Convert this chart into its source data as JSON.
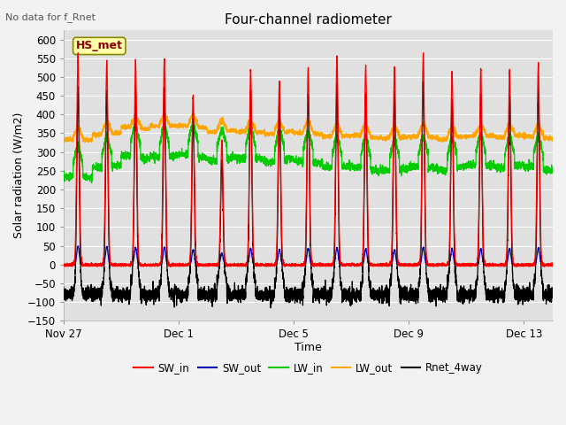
{
  "title": "Four-channel radiometer",
  "top_left_text": "No data for f_Rnet",
  "xlabel": "Time",
  "ylabel": "Solar radiation (W/m2)",
  "ylim": [
    -150,
    625
  ],
  "yticks": [
    -150,
    -100,
    -50,
    0,
    50,
    100,
    150,
    200,
    250,
    300,
    350,
    400,
    450,
    500,
    550,
    600
  ],
  "fig_bg_color": "#f2f2f2",
  "plot_bg_color": "#e0e0e0",
  "legend_entries": [
    "SW_in",
    "SW_out",
    "LW_in",
    "LW_out",
    "Rnet_4way"
  ],
  "legend_colors": [
    "#ff0000",
    "#0000bb",
    "#00cc00",
    "#ffa500",
    "#000000"
  ],
  "station_label": "HS_met",
  "station_label_color": "#880000",
  "station_label_bg": "#ffffaa",
  "station_label_edge": "#888800",
  "n_days": 17,
  "samples_per_day": 288,
  "x_tick_labels": [
    "Nov 27",
    "Dec 1",
    "Dec 5",
    "Dec 9",
    "Dec 13"
  ],
  "x_tick_positions": [
    0,
    4,
    8,
    12,
    16
  ],
  "title_fontsize": 11,
  "axis_fontsize": 9,
  "tick_fontsize": 8.5
}
